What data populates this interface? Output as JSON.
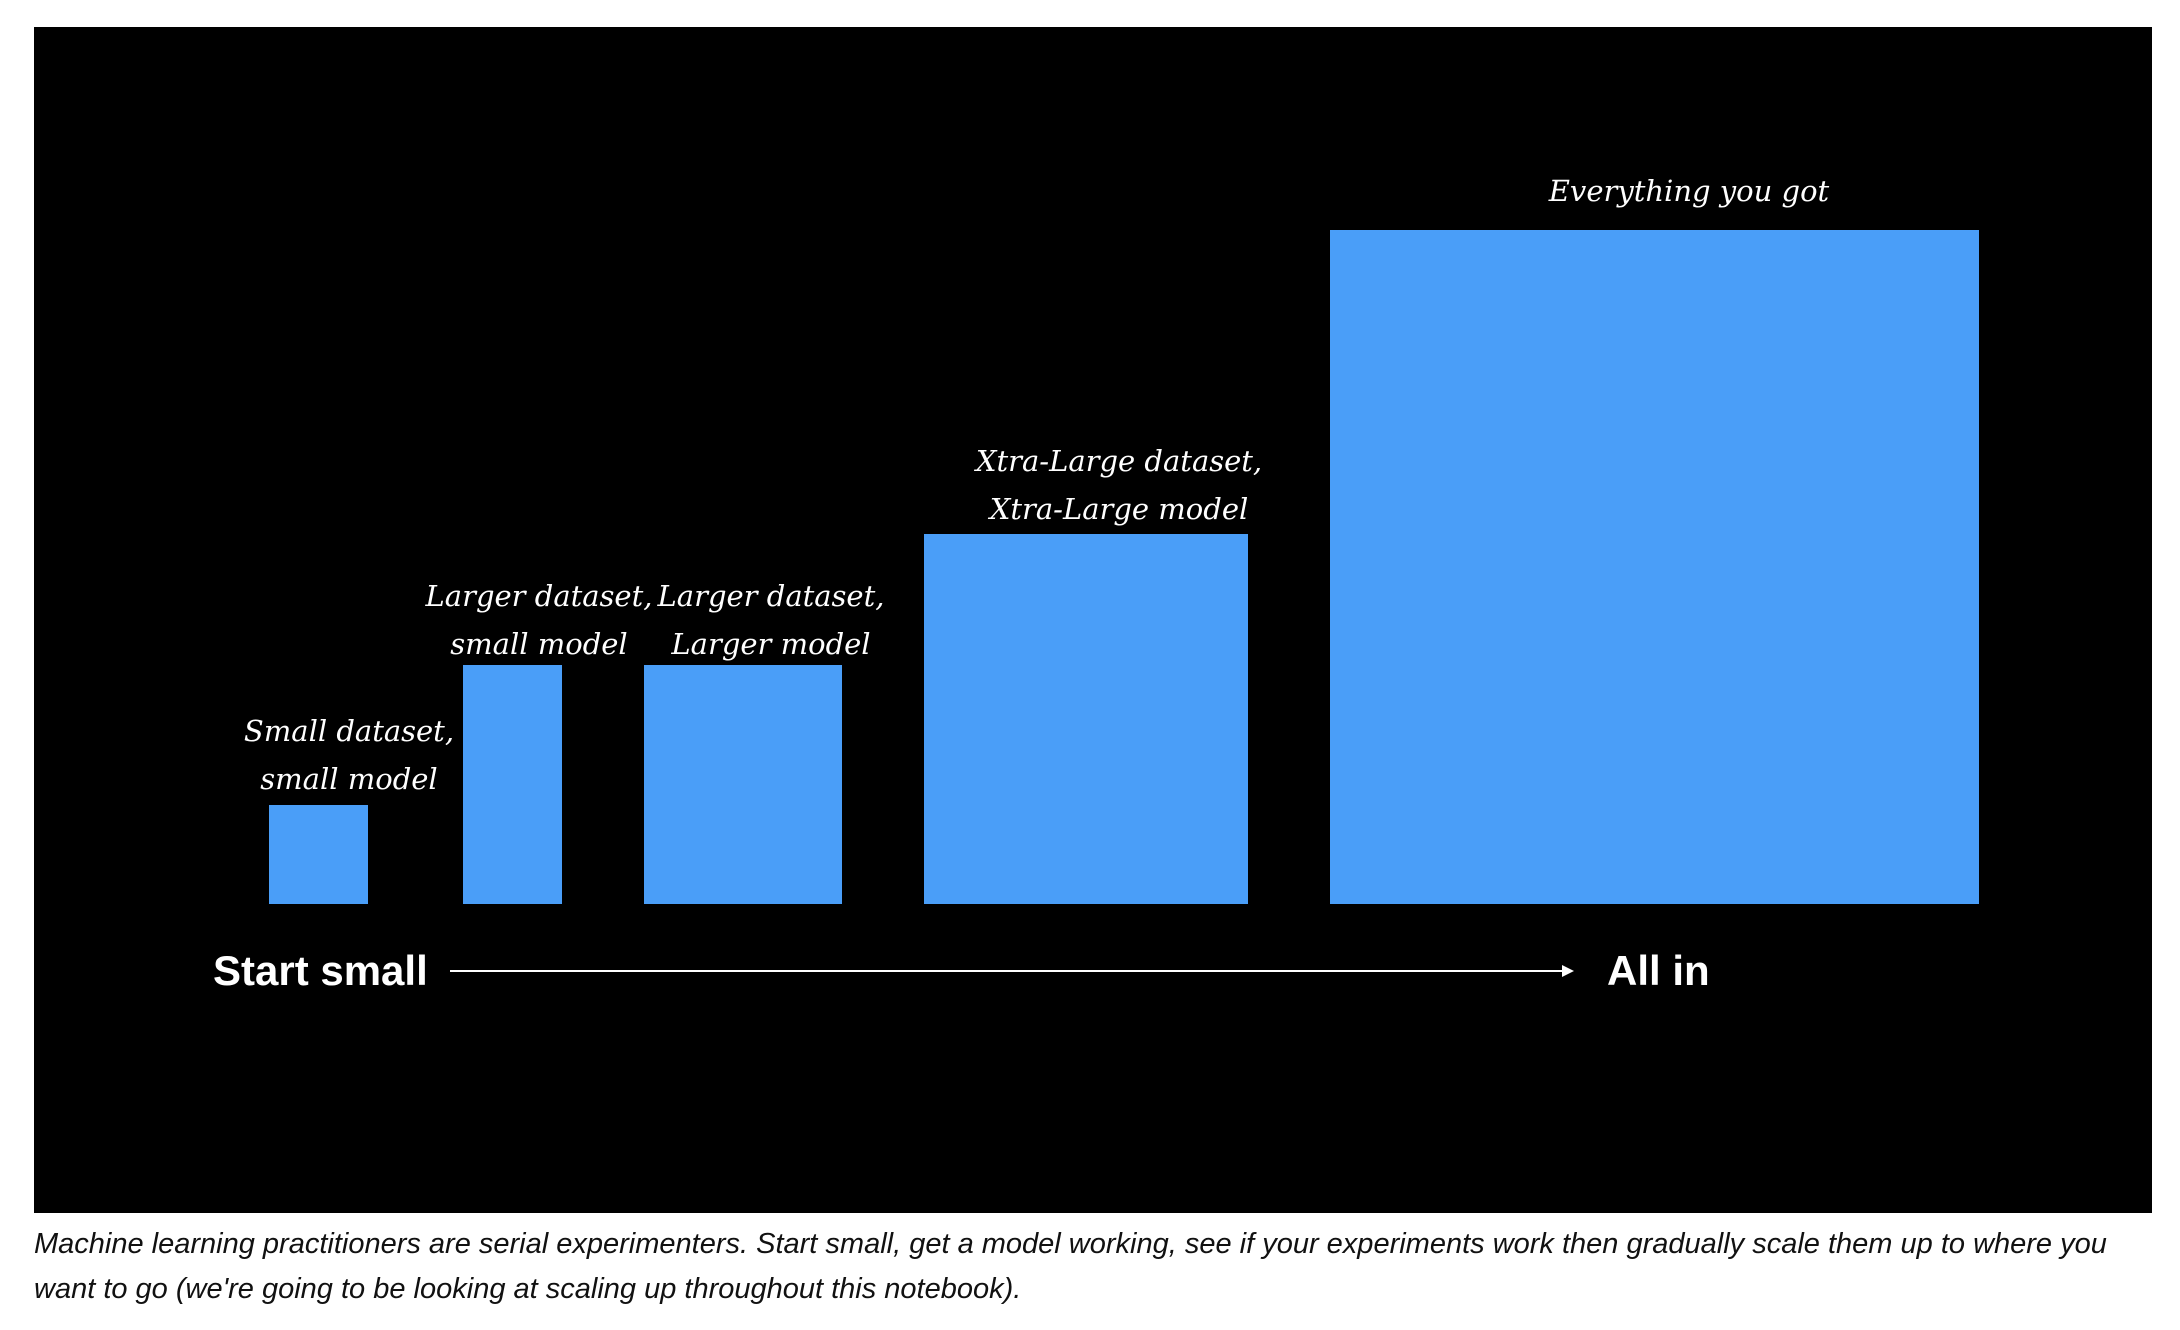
{
  "diagram": {
    "background": "#000000",
    "bar_color": "#4a9ef8",
    "stages": [
      {
        "line1": "Small dataset,",
        "line2": "small model"
      },
      {
        "line1": "Larger dataset,",
        "line2": "small model"
      },
      {
        "line1": "Larger dataset,",
        "line2": "Larger model"
      },
      {
        "line1": "Xtra-Large dataset,",
        "line2": "Xtra-Large model"
      },
      {
        "line1": "Everything you got",
        "line2": ""
      }
    ],
    "start_label": "Start small",
    "end_label": "All in"
  },
  "caption": "Machine learning practitioners are serial experimenters. Start small, get a model working, see if your experiments work then gradually scale them up to where you want to go (we're going to be looking at scaling up throughout this notebook)."
}
